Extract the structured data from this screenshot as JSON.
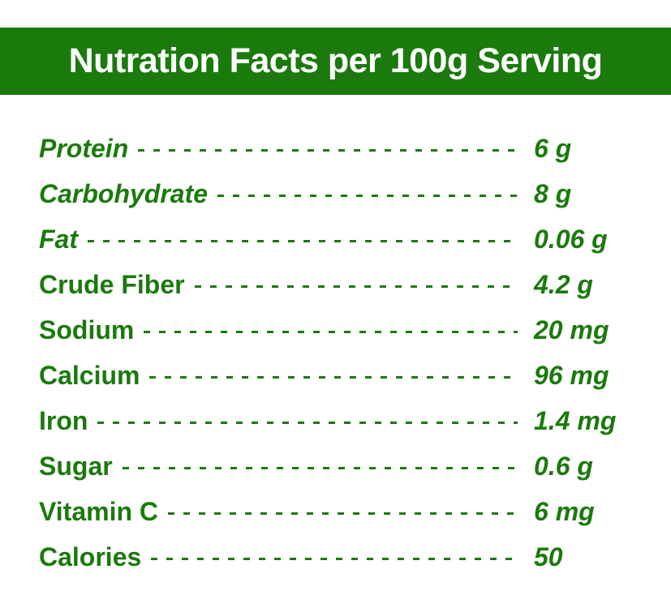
{
  "header": {
    "title": "Nutration Facts per 100g Serving"
  },
  "colors": {
    "brand_green": "#1a7a0c",
    "text_on_banner": "#ffffff"
  },
  "rows": [
    {
      "label": "Protein",
      "value": "6 g",
      "italic_label": true
    },
    {
      "label": "Carbohydrate",
      "value": "8 g",
      "italic_label": true
    },
    {
      "label": "Fat",
      "value": "0.06 g",
      "italic_label": true
    },
    {
      "label": "Crude Fiber",
      "value": "4.2 g",
      "italic_label": false
    },
    {
      "label": "Sodium",
      "value": "20 mg",
      "italic_label": false
    },
    {
      "label": "Calcium",
      "value": "96 mg",
      "italic_label": false
    },
    {
      "label": "Iron",
      "value": "1.4 mg",
      "italic_label": false
    },
    {
      "label": "Sugar",
      "value": "0.6 g",
      "italic_label": false
    },
    {
      "label": "Vitamin C",
      "value": "6 mg",
      "italic_label": false
    },
    {
      "label": "Calories",
      "value": "50",
      "italic_label": false
    }
  ]
}
